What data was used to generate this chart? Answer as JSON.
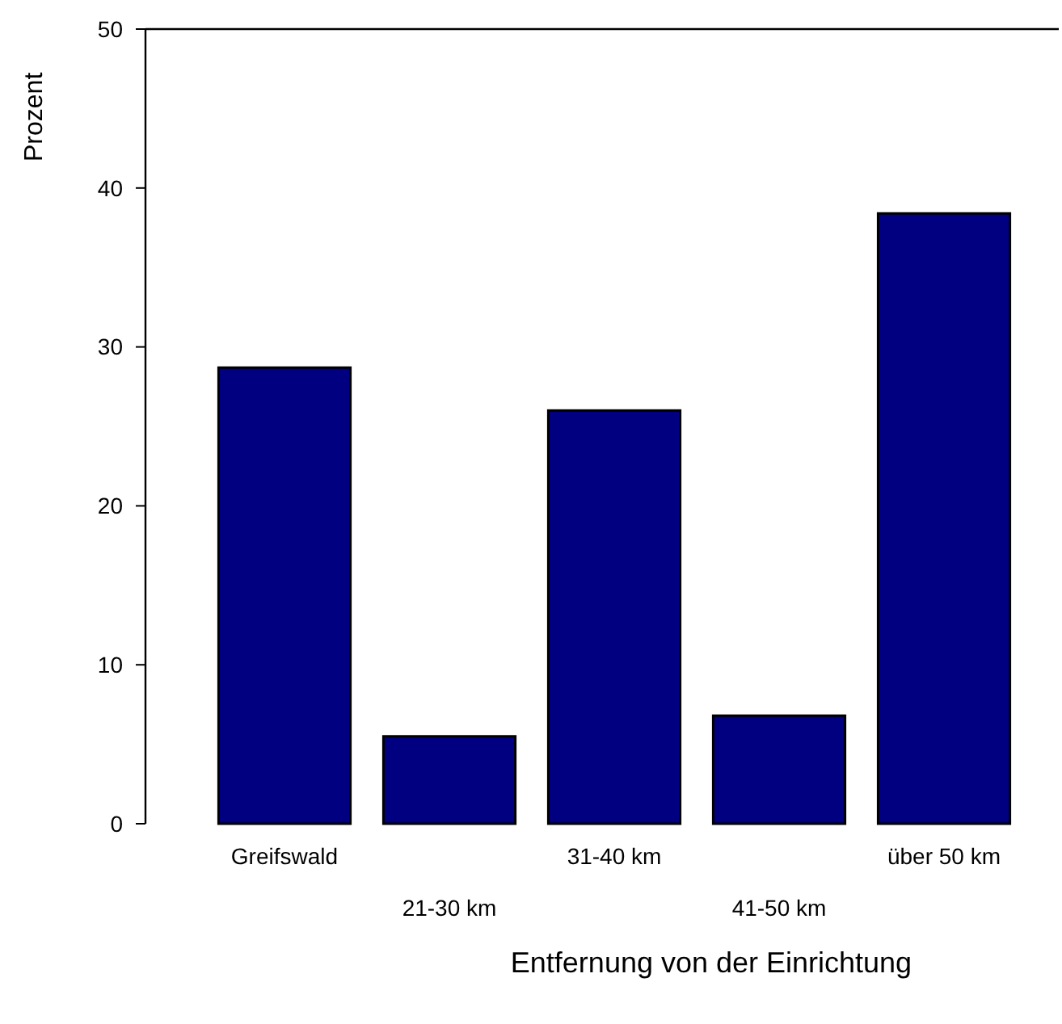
{
  "chart_data": {
    "type": "bar",
    "xlabel": "Entfernung von der Einrichtung",
    "ylabel": "Prozent",
    "categories": [
      "Greifswald",
      "21-30 km",
      "31-40 km",
      "41-50 km",
      "über 50 km"
    ],
    "values": [
      28.7,
      5.5,
      26.0,
      6.8,
      38.4
    ],
    "color": "#000080",
    "ylim": [
      0,
      50
    ],
    "yticks": [
      0,
      10,
      20,
      30,
      40,
      50
    ],
    "grid": false
  }
}
